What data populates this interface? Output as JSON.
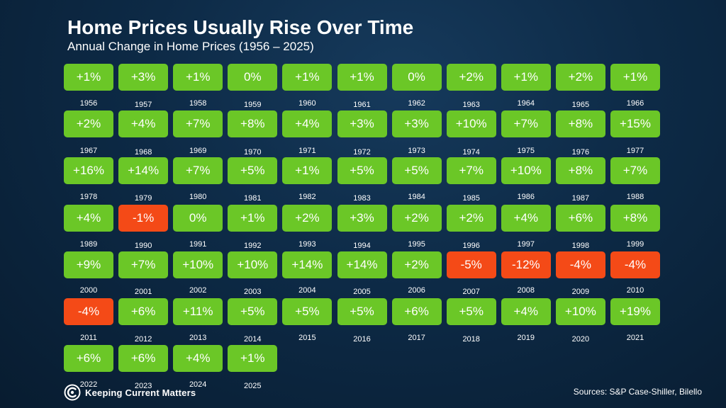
{
  "title": "Home Prices Usually Rise Over Time",
  "subtitle": "Annual Change in Home Prices (1956 – 2025)",
  "sources": "Sources: S&P Case-Shiller, Bilello",
  "logo_text": "Keeping Current Matters",
  "colors": {
    "positive": "#6bc727",
    "negative": "#f44a17",
    "background": "#0d2a46"
  },
  "chart_data": {
    "type": "table",
    "title": "Home Prices Usually Rise Over Time",
    "subtitle": "Annual Change in Home Prices (1956 – 2025)",
    "columns": 11,
    "cells": [
      {
        "year": "1956",
        "value": "+1%"
      },
      {
        "year": "1957",
        "value": "+3%"
      },
      {
        "year": "1958",
        "value": "+1%"
      },
      {
        "year": "1959",
        "value": "0%"
      },
      {
        "year": "1960",
        "value": "+1%"
      },
      {
        "year": "1961",
        "value": "+1%"
      },
      {
        "year": "1962",
        "value": "0%"
      },
      {
        "year": "1963",
        "value": "+2%"
      },
      {
        "year": "1964",
        "value": "+1%"
      },
      {
        "year": "1965",
        "value": "+2%"
      },
      {
        "year": "1966",
        "value": "+1%"
      },
      {
        "year": "1967",
        "value": "+2%"
      },
      {
        "year": "1968",
        "value": "+4%"
      },
      {
        "year": "1969",
        "value": "+7%"
      },
      {
        "year": "1970",
        "value": "+8%"
      },
      {
        "year": "1971",
        "value": "+4%"
      },
      {
        "year": "1972",
        "value": "+3%"
      },
      {
        "year": "1973",
        "value": "+3%"
      },
      {
        "year": "1974",
        "value": "+10%"
      },
      {
        "year": "1975",
        "value": "+7%"
      },
      {
        "year": "1976",
        "value": "+8%"
      },
      {
        "year": "1977",
        "value": "+15%"
      },
      {
        "year": "1978",
        "value": "+16%"
      },
      {
        "year": "1979",
        "value": "+14%"
      },
      {
        "year": "1980",
        "value": "+7%"
      },
      {
        "year": "1981",
        "value": "+5%"
      },
      {
        "year": "1982",
        "value": "+1%"
      },
      {
        "year": "1983",
        "value": "+5%"
      },
      {
        "year": "1984",
        "value": "+5%"
      },
      {
        "year": "1985",
        "value": "+7%"
      },
      {
        "year": "1986",
        "value": "+10%"
      },
      {
        "year": "1987",
        "value": "+8%"
      },
      {
        "year": "1988",
        "value": "+7%"
      },
      {
        "year": "1989",
        "value": "+4%"
      },
      {
        "year": "1990",
        "value": "-1%"
      },
      {
        "year": "1991",
        "value": "0%"
      },
      {
        "year": "1992",
        "value": "+1%"
      },
      {
        "year": "1993",
        "value": "+2%"
      },
      {
        "year": "1994",
        "value": "+3%"
      },
      {
        "year": "1995",
        "value": "+2%"
      },
      {
        "year": "1996",
        "value": "+2%"
      },
      {
        "year": "1997",
        "value": "+4%"
      },
      {
        "year": "1998",
        "value": "+6%"
      },
      {
        "year": "1999",
        "value": "+8%"
      },
      {
        "year": "2000",
        "value": "+9%"
      },
      {
        "year": "2001",
        "value": "+7%"
      },
      {
        "year": "2002",
        "value": "+10%"
      },
      {
        "year": "2003",
        "value": "+10%"
      },
      {
        "year": "2004",
        "value": "+14%"
      },
      {
        "year": "2005",
        "value": "+14%"
      },
      {
        "year": "2006",
        "value": "+2%"
      },
      {
        "year": "2007",
        "value": "-5%"
      },
      {
        "year": "2008",
        "value": "-12%"
      },
      {
        "year": "2009",
        "value": "-4%"
      },
      {
        "year": "2010",
        "value": "-4%"
      },
      {
        "year": "2011",
        "value": "-4%"
      },
      {
        "year": "2012",
        "value": "+6%"
      },
      {
        "year": "2013",
        "value": "+11%"
      },
      {
        "year": "2014",
        "value": "+5%"
      },
      {
        "year": "2015",
        "value": "+5%"
      },
      {
        "year": "2016",
        "value": "+5%"
      },
      {
        "year": "2017",
        "value": "+6%"
      },
      {
        "year": "2018",
        "value": "+5%"
      },
      {
        "year": "2019",
        "value": "+4%"
      },
      {
        "year": "2020",
        "value": "+10%"
      },
      {
        "year": "2021",
        "value": "+19%"
      },
      {
        "year": "2022",
        "value": "+6%"
      },
      {
        "year": "2023",
        "value": "+6%"
      },
      {
        "year": "2024",
        "value": "+4%"
      },
      {
        "year": "2025",
        "value": "+1%"
      }
    ]
  }
}
